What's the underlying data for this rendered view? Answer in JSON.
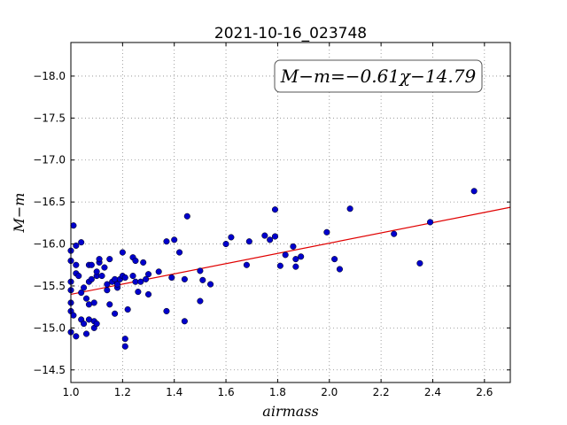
{
  "chart_data": {
    "type": "scatter",
    "title": "2021-10-16_023748",
    "xlabel": "airmass",
    "ylabel": "M−m",
    "xlim": [
      1.0,
      2.7
    ],
    "ylim": [
      -18.4,
      -14.35
    ],
    "y_inverted": true,
    "xticks": [
      "1.0",
      "1.2",
      "1.4",
      "1.6",
      "1.8",
      "2.0",
      "2.2",
      "2.4",
      "2.6"
    ],
    "xtick_values": [
      1.0,
      1.2,
      1.4,
      1.6,
      1.8,
      2.0,
      2.2,
      2.4,
      2.6
    ],
    "yticks": [
      "−14.5",
      "−15.0",
      "−15.5",
      "−16.0",
      "−16.5",
      "−17.0",
      "−17.5",
      "−18.0"
    ],
    "ytick_values": [
      -14.5,
      -15.0,
      -15.5,
      -16.0,
      -16.5,
      -17.0,
      -17.5,
      -18.0
    ],
    "grid": true,
    "point_color": "#0000cc",
    "fit_color": "#e00000",
    "fit": {
      "slope": -0.61,
      "intercept": -14.79
    },
    "annotation": "M−m=−0.61χ−14.79",
    "annotation_placement": "top-right",
    "points": [
      [
        1.0,
        -14.95
      ],
      [
        1.0,
        -15.2
      ],
      [
        1.0,
        -15.3
      ],
      [
        1.0,
        -15.45
      ],
      [
        1.0,
        -15.55
      ],
      [
        1.0,
        -15.8
      ],
      [
        1.0,
        -15.92
      ],
      [
        1.01,
        -15.15
      ],
      [
        1.01,
        -16.22
      ],
      [
        1.02,
        -14.9
      ],
      [
        1.02,
        -15.65
      ],
      [
        1.02,
        -15.98
      ],
      [
        1.02,
        -15.75
      ],
      [
        1.03,
        -15.62
      ],
      [
        1.04,
        -15.1
      ],
      [
        1.04,
        -15.42
      ],
      [
        1.04,
        -16.02
      ],
      [
        1.05,
        -15.05
      ],
      [
        1.05,
        -15.48
      ],
      [
        1.06,
        -14.93
      ],
      [
        1.06,
        -15.35
      ],
      [
        1.07,
        -15.1
      ],
      [
        1.07,
        -15.28
      ],
      [
        1.07,
        -15.55
      ],
      [
        1.07,
        -15.75
      ],
      [
        1.08,
        -15.58
      ],
      [
        1.08,
        -15.75
      ],
      [
        1.09,
        -15.0
      ],
      [
        1.09,
        -15.08
      ],
      [
        1.09,
        -15.3
      ],
      [
        1.1,
        -15.05
      ],
      [
        1.1,
        -15.62
      ],
      [
        1.1,
        -15.67
      ],
      [
        1.11,
        -15.78
      ],
      [
        1.11,
        -15.82
      ],
      [
        1.12,
        -15.62
      ],
      [
        1.13,
        -15.72
      ],
      [
        1.14,
        -15.45
      ],
      [
        1.14,
        -15.52
      ],
      [
        1.15,
        -15.28
      ],
      [
        1.15,
        -15.82
      ],
      [
        1.16,
        -15.55
      ],
      [
        1.17,
        -15.17
      ],
      [
        1.17,
        -15.58
      ],
      [
        1.18,
        -15.48
      ],
      [
        1.18,
        -15.52
      ],
      [
        1.19,
        -15.58
      ],
      [
        1.2,
        -15.62
      ],
      [
        1.2,
        -15.9
      ],
      [
        1.21,
        -14.78
      ],
      [
        1.21,
        -14.87
      ],
      [
        1.21,
        -15.6
      ],
      [
        1.22,
        -15.22
      ],
      [
        1.24,
        -15.62
      ],
      [
        1.24,
        -15.84
      ],
      [
        1.25,
        -15.55
      ],
      [
        1.25,
        -15.8
      ],
      [
        1.26,
        -15.43
      ],
      [
        1.27,
        -15.55
      ],
      [
        1.28,
        -15.78
      ],
      [
        1.29,
        -15.58
      ],
      [
        1.3,
        -15.4
      ],
      [
        1.3,
        -15.64
      ],
      [
        1.34,
        -15.67
      ],
      [
        1.37,
        -15.2
      ],
      [
        1.37,
        -16.03
      ],
      [
        1.39,
        -15.6
      ],
      [
        1.4,
        -16.05
      ],
      [
        1.42,
        -15.9
      ],
      [
        1.44,
        -15.08
      ],
      [
        1.44,
        -15.58
      ],
      [
        1.45,
        -16.33
      ],
      [
        1.5,
        -15.32
      ],
      [
        1.5,
        -15.68
      ],
      [
        1.51,
        -15.57
      ],
      [
        1.54,
        -15.52
      ],
      [
        1.6,
        -16.0
      ],
      [
        1.62,
        -16.08
      ],
      [
        1.68,
        -15.75
      ],
      [
        1.69,
        -16.03
      ],
      [
        1.75,
        -16.1
      ],
      [
        1.77,
        -16.05
      ],
      [
        1.79,
        -16.09
      ],
      [
        1.79,
        -16.41
      ],
      [
        1.81,
        -15.74
      ],
      [
        1.83,
        -15.87
      ],
      [
        1.86,
        -15.97
      ],
      [
        1.87,
        -15.73
      ],
      [
        1.87,
        -15.82
      ],
      [
        1.89,
        -15.85
      ],
      [
        1.99,
        -16.14
      ],
      [
        2.02,
        -15.82
      ],
      [
        2.04,
        -15.7
      ],
      [
        2.08,
        -16.42
      ],
      [
        2.25,
        -16.12
      ],
      [
        2.35,
        -15.77
      ],
      [
        2.39,
        -16.26
      ],
      [
        2.56,
        -16.63
      ]
    ]
  }
}
